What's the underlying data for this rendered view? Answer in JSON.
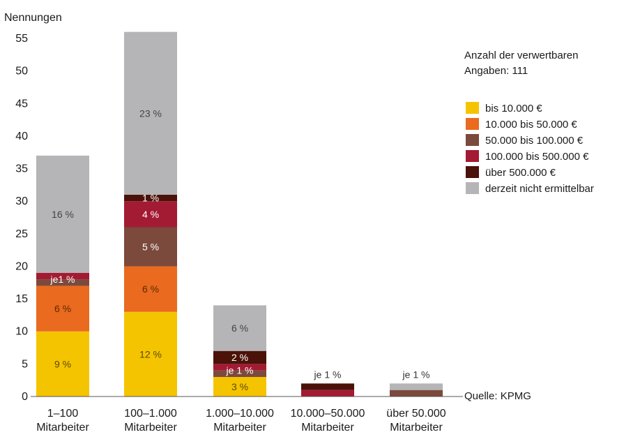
{
  "chart_data": {
    "type": "bar",
    "stacked": true,
    "ylabel": "Nennungen",
    "ylim": [
      0,
      55
    ],
    "yticks": [
      0,
      5,
      10,
      15,
      20,
      25,
      30,
      35,
      40,
      45,
      50,
      55
    ],
    "grid": false,
    "categories": [
      [
        "1–100",
        "Mitarbeiter"
      ],
      [
        "100–1.000",
        "Mitarbeiter"
      ],
      [
        "1.000–10.000",
        "Mitarbeiter"
      ],
      [
        "10.000–50.000",
        "Mitarbeiter"
      ],
      [
        "über 50.000",
        "Mitarbeiter"
      ]
    ],
    "series": [
      {
        "name": "bis 10.000 €",
        "color": "#f5c400",
        "values": [
          10,
          13,
          3,
          0,
          0
        ]
      },
      {
        "name": "10.000 bis 50.000 €",
        "color": "#ea6a1f",
        "values": [
          7,
          7,
          0,
          0,
          0
        ]
      },
      {
        "name": "50.000 bis 100.000 €",
        "color": "#7b4a3c",
        "values": [
          1,
          6,
          1,
          0,
          1
        ]
      },
      {
        "name": "100.000 bis 500.000 €",
        "color": "#a31a33",
        "values": [
          1,
          4,
          1,
          1,
          0
        ]
      },
      {
        "name": "über 500.000 €",
        "color": "#4a1208",
        "values": [
          0,
          1,
          2,
          1,
          0
        ]
      },
      {
        "name": "derzeit nicht ermittelbar",
        "color": "#b5b5b7",
        "values": [
          18,
          25,
          7,
          0,
          1
        ]
      }
    ],
    "annotations": [
      {
        "category": 0,
        "stack_from": 0,
        "stack_to": 10,
        "text": "9 %",
        "color": "#5a4a00"
      },
      {
        "category": 0,
        "stack_from": 10,
        "stack_to": 17,
        "text": "6 %",
        "color": "#5a2a00"
      },
      {
        "category": 0,
        "stack_from": 17,
        "stack_to": 19,
        "text": "je1 %",
        "color": "#ffffff"
      },
      {
        "category": 0,
        "stack_from": 19,
        "stack_to": 37,
        "text": "16 %",
        "color": "#444444"
      },
      {
        "category": 1,
        "stack_from": 0,
        "stack_to": 13,
        "text": "12 %",
        "color": "#5a4a00"
      },
      {
        "category": 1,
        "stack_from": 13,
        "stack_to": 20,
        "text": "6 %",
        "color": "#5a2a00"
      },
      {
        "category": 1,
        "stack_from": 20,
        "stack_to": 26,
        "text": "5 %",
        "color": "#ffffff"
      },
      {
        "category": 1,
        "stack_from": 26,
        "stack_to": 30,
        "text": "4 %",
        "color": "#ffffff"
      },
      {
        "category": 1,
        "stack_from": 30,
        "stack_to": 31,
        "text": "1 %",
        "color": "#ffffff"
      },
      {
        "category": 1,
        "stack_from": 31,
        "stack_to": 56,
        "text": "23 %",
        "color": "#444444"
      },
      {
        "category": 2,
        "stack_from": 0,
        "stack_to": 3,
        "text": "3 %",
        "color": "#5a4a00"
      },
      {
        "category": 2,
        "stack_from": 3,
        "stack_to": 5,
        "text": "je 1 %",
        "color": "#ffffff"
      },
      {
        "category": 2,
        "stack_from": 5,
        "stack_to": 7,
        "text": "2 %",
        "color": "#ffffff"
      },
      {
        "category": 2,
        "stack_from": 7,
        "stack_to": 14,
        "text": "6 %",
        "color": "#444444"
      },
      {
        "category": 3,
        "stack_from": 2,
        "stack_to": 2,
        "text": "je 1 %",
        "color": "#333333",
        "above": true
      },
      {
        "category": 4,
        "stack_from": 2,
        "stack_to": 2,
        "text": "je 1 %",
        "color": "#333333",
        "above": true
      }
    ],
    "legend_note": [
      "Anzahl der verwertbaren",
      "Angaben: 111"
    ],
    "legend_position": "top-right",
    "source": "Quelle: KPMG"
  }
}
